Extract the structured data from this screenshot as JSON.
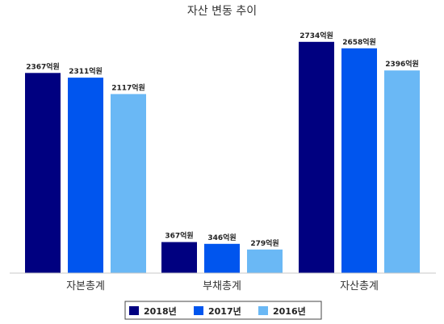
{
  "chart_data": {
    "type": "bar",
    "title": "자산 변동 추이",
    "categories": [
      "자본총계",
      "부채총계",
      "자산총계"
    ],
    "unit": "억원",
    "series": [
      {
        "name": "2018년",
        "color": "#000080",
        "values": [
          2367,
          367,
          2734
        ]
      },
      {
        "name": "2017년",
        "color": "#0055ee",
        "values": [
          2311,
          346,
          2658
        ]
      },
      {
        "name": "2016년",
        "color": "#6ab8f5",
        "values": [
          2117,
          279,
          2396
        ]
      }
    ],
    "ylim": [
      0,
      3000
    ],
    "grid": false,
    "legend_position": "bottom"
  }
}
